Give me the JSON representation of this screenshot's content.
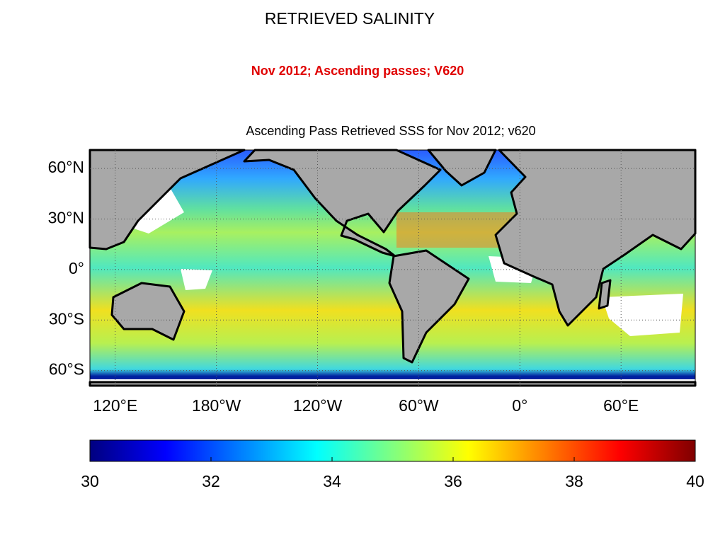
{
  "chart_data": {
    "type": "map",
    "title": "RETRIEVED SALINITY",
    "subtitle": "Nov 2012; Ascending passes; V620",
    "map_title": "Ascending Pass Retrieved SSS for Nov 2012; v620",
    "xlim": [
      105,
      464
    ],
    "ylim": [
      -69,
      71
    ],
    "xticks": [
      {
        "value": 120,
        "label": "120°E"
      },
      {
        "value": 180,
        "label": "180°W"
      },
      {
        "value": 240,
        "label": "120°W"
      },
      {
        "value": 300,
        "label": "60°W"
      },
      {
        "value": 360,
        "label": "0°"
      },
      {
        "value": 420,
        "label": "60°E"
      }
    ],
    "yticks": [
      {
        "value": 60,
        "label": "60°N"
      },
      {
        "value": 30,
        "label": "30°N"
      },
      {
        "value": 0,
        "label": "0°"
      },
      {
        "value": -30,
        "label": "30°S"
      },
      {
        "value": -60,
        "label": "60°S"
      }
    ],
    "grid": true,
    "colorbar": {
      "range": [
        30,
        40
      ],
      "ticks": [
        30,
        32,
        34,
        36,
        38,
        40
      ],
      "colormap": "jet"
    }
  }
}
